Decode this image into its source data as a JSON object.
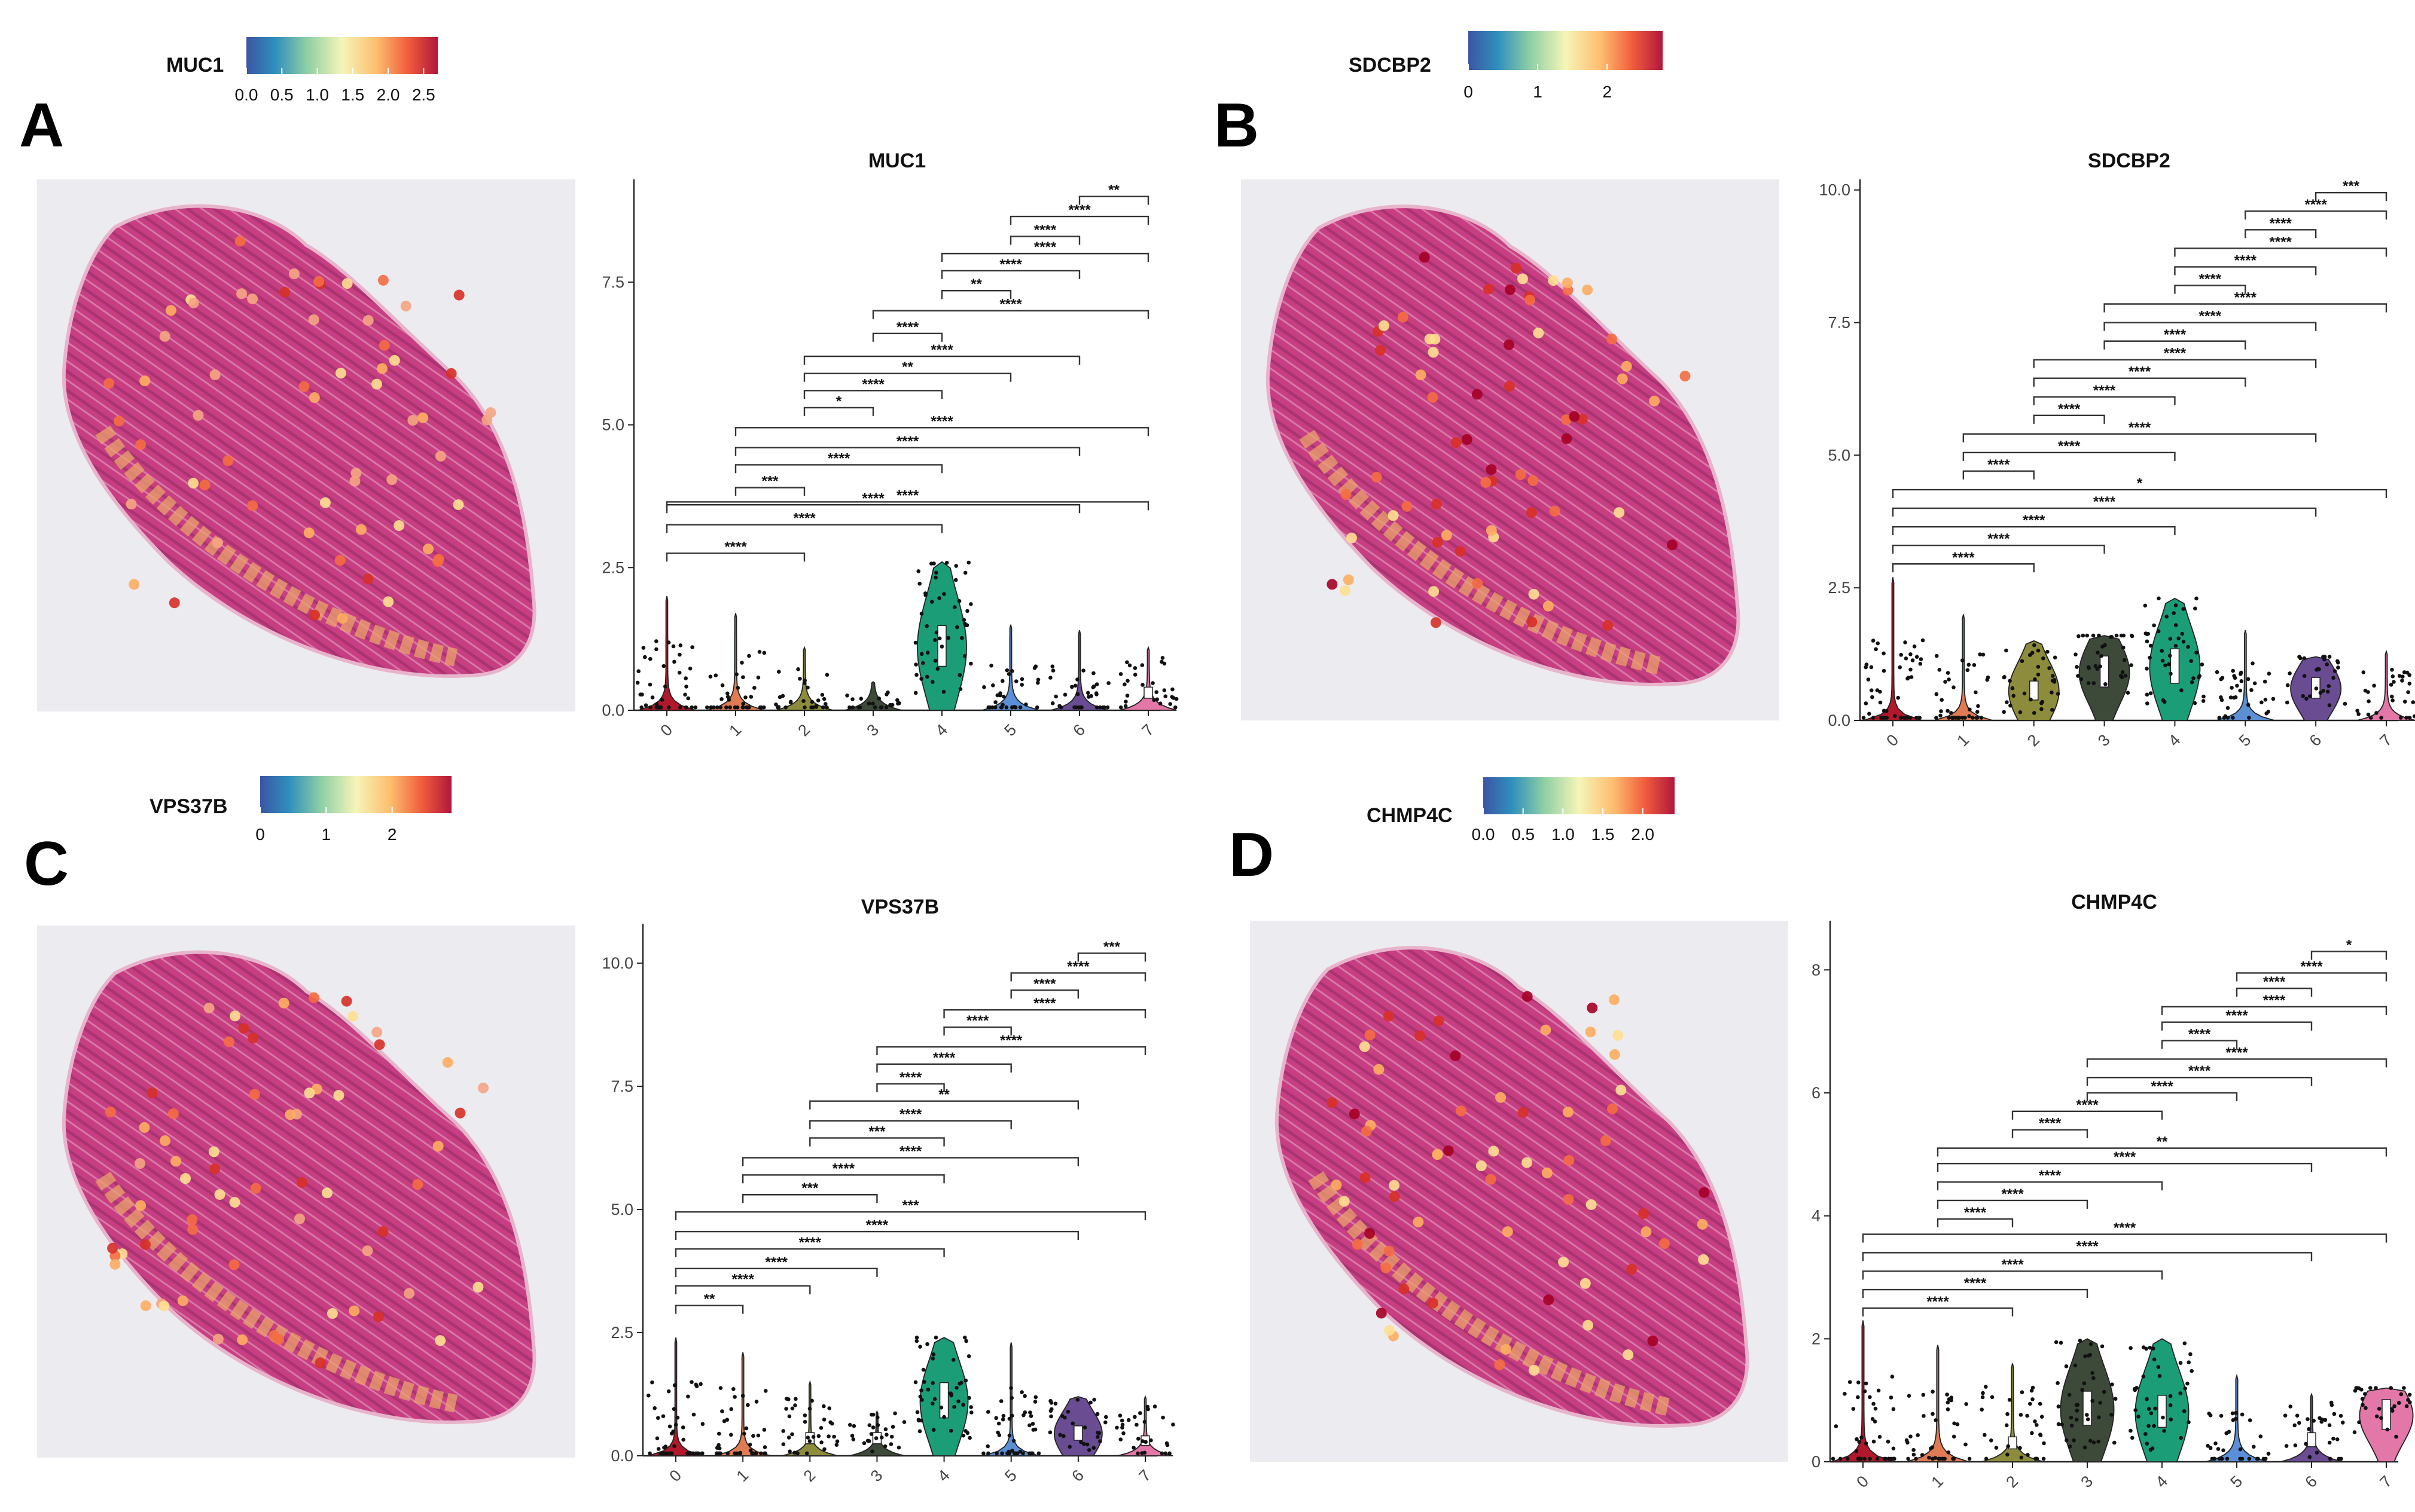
{
  "figure": {
    "panels": [
      {
        "letter": "A",
        "gene": "MUC1",
        "legend": {
          "title": "MUC1",
          "ticks": [
            "0.0",
            "0.5",
            "1.0",
            "1.5",
            "2.0",
            "2.5"
          ],
          "min": 0,
          "max": 2.7
        },
        "tissue_spot_colors": [
          "#f4a582",
          "#fdae61",
          "#f46d43",
          "#fee090",
          "#d73027"
        ]
      },
      {
        "letter": "B",
        "gene": "SDCBP2",
        "legend": {
          "title": "SDCBP2",
          "ticks": [
            "0",
            "1",
            "2"
          ],
          "min": 0,
          "max": 2.8
        },
        "tissue_spot_colors": [
          "#fdae61",
          "#f46d43",
          "#d73027",
          "#fee090",
          "#a50026"
        ]
      },
      {
        "letter": "C",
        "gene": "VPS37B",
        "legend": {
          "title": "VPS37B",
          "ticks": [
            "0",
            "1",
            "2"
          ],
          "min": 0,
          "max": 2.9
        },
        "tissue_spot_colors": [
          "#fdae61",
          "#f46d43",
          "#fee090",
          "#d73027",
          "#f4a582"
        ]
      },
      {
        "letter": "D",
        "gene": "CHMP4C",
        "legend": {
          "title": "CHMP4C",
          "ticks": [
            "0.0",
            "0.5",
            "1.0",
            "1.5",
            "2.0"
          ],
          "min": 0,
          "max": 2.4
        },
        "tissue_spot_colors": [
          "#fdae61",
          "#d73027",
          "#f46d43",
          "#fee090",
          "#a50026"
        ]
      }
    ],
    "colors": {
      "clusters": [
        "#b2182b",
        "#e07b54",
        "#8c8c3c",
        "#3d4a3a",
        "#1b9e77",
        "#5b8fd6",
        "#6a4c93",
        "#e377a8"
      ],
      "tissue": "#c2407f",
      "tissue_edge": "#e8b4cc",
      "spatial_bg": "#ececf0"
    }
  },
  "chart_data": [
    {
      "type": "violin",
      "title": "MUC1",
      "categories": [
        "0",
        "1",
        "2",
        "3",
        "4",
        "5",
        "6",
        "7"
      ],
      "ylim": [
        0,
        9.3
      ],
      "yticks": [
        "0.0",
        "2.5",
        "5.0",
        "7.5"
      ],
      "violin_max": [
        2.0,
        1.7,
        1.1,
        0.5,
        2.6,
        1.5,
        1.4,
        1.1
      ],
      "medians": [
        0.05,
        0.05,
        0.1,
        0.05,
        1.1,
        0.05,
        0.15,
        0.3
      ],
      "comparisons": [
        {
          "a": "0",
          "b": "2",
          "y": 2.75,
          "label": "****"
        },
        {
          "a": "0",
          "b": "4",
          "y": 3.25,
          "label": "****"
        },
        {
          "a": "0",
          "b": "6",
          "y": 3.6,
          "label": "****"
        },
        {
          "a": "0",
          "b": "7",
          "y": 3.65,
          "label": "****"
        },
        {
          "a": "1",
          "b": "2",
          "y": 3.9,
          "label": "***"
        },
        {
          "a": "1",
          "b": "4",
          "y": 4.3,
          "label": "****"
        },
        {
          "a": "1",
          "b": "6",
          "y": 4.6,
          "label": "****"
        },
        {
          "a": "1",
          "b": "7",
          "y": 4.95,
          "label": "****"
        },
        {
          "a": "2",
          "b": "3",
          "y": 5.3,
          "label": "*"
        },
        {
          "a": "2",
          "b": "4",
          "y": 5.6,
          "label": "****"
        },
        {
          "a": "2",
          "b": "5",
          "y": 5.9,
          "label": "**"
        },
        {
          "a": "2",
          "b": "6",
          "y": 6.2,
          "label": "****"
        },
        {
          "a": "3",
          "b": "4",
          "y": 6.6,
          "label": "****"
        },
        {
          "a": "3",
          "b": "7",
          "y": 7.0,
          "label": "****"
        },
        {
          "a": "4",
          "b": "5",
          "y": 7.35,
          "label": "**"
        },
        {
          "a": "4",
          "b": "6",
          "y": 7.7,
          "label": "****"
        },
        {
          "a": "4",
          "b": "7",
          "y": 8.0,
          "label": "****"
        },
        {
          "a": "5",
          "b": "6",
          "y": 8.3,
          "label": "****"
        },
        {
          "a": "5",
          "b": "7",
          "y": 8.65,
          "label": "****"
        },
        {
          "a": "6",
          "b": "7",
          "y": 9.0,
          "label": "**"
        }
      ]
    },
    {
      "type": "violin",
      "title": "SDCBP2",
      "categories": [
        "0",
        "1",
        "2",
        "3",
        "4",
        "5",
        "6",
        "7"
      ],
      "ylim": [
        0,
        10.2
      ],
      "yticks": [
        "0.0",
        "2.5",
        "5.0",
        "7.5",
        "10.0"
      ],
      "violin_max": [
        2.7,
        2.0,
        1.5,
        1.6,
        2.3,
        1.7,
        1.2,
        1.3
      ],
      "medians": [
        0.1,
        0.1,
        0.55,
        0.9,
        1.0,
        0.1,
        0.6,
        0.2
      ],
      "comparisons": [
        {
          "a": "0",
          "b": "2",
          "y": 2.95,
          "label": "****"
        },
        {
          "a": "0",
          "b": "3",
          "y": 3.3,
          "label": "****"
        },
        {
          "a": "0",
          "b": "4",
          "y": 3.65,
          "label": "****"
        },
        {
          "a": "0",
          "b": "6",
          "y": 4.0,
          "label": "****"
        },
        {
          "a": "0",
          "b": "7",
          "y": 4.35,
          "label": "*"
        },
        {
          "a": "1",
          "b": "2",
          "y": 4.7,
          "label": "****"
        },
        {
          "a": "1",
          "b": "4",
          "y": 5.05,
          "label": "****"
        },
        {
          "a": "1",
          "b": "6",
          "y": 5.4,
          "label": "****"
        },
        {
          "a": "2",
          "b": "3",
          "y": 5.75,
          "label": "****"
        },
        {
          "a": "2",
          "b": "4",
          "y": 6.1,
          "label": "****"
        },
        {
          "a": "2",
          "b": "5",
          "y": 6.45,
          "label": "****"
        },
        {
          "a": "2",
          "b": "6",
          "y": 6.8,
          "label": "****"
        },
        {
          "a": "3",
          "b": "5",
          "y": 7.15,
          "label": "****"
        },
        {
          "a": "3",
          "b": "6",
          "y": 7.5,
          "label": "****"
        },
        {
          "a": "3",
          "b": "7",
          "y": 7.85,
          "label": "****"
        },
        {
          "a": "4",
          "b": "5",
          "y": 8.2,
          "label": "****"
        },
        {
          "a": "4",
          "b": "6",
          "y": 8.55,
          "label": "****"
        },
        {
          "a": "4",
          "b": "7",
          "y": 8.9,
          "label": "****"
        },
        {
          "a": "5",
          "b": "6",
          "y": 9.25,
          "label": "****"
        },
        {
          "a": "5",
          "b": "7",
          "y": 9.6,
          "label": "****"
        },
        {
          "a": "6",
          "b": "7",
          "y": 9.95,
          "label": "***"
        }
      ]
    },
    {
      "type": "violin",
      "title": "VPS37B",
      "categories": [
        "0",
        "1",
        "2",
        "3",
        "4",
        "5",
        "6",
        "7"
      ],
      "ylim": [
        0,
        10.8
      ],
      "yticks": [
        "0.0",
        "2.5",
        "5.0",
        "7.5",
        "10.0"
      ],
      "violin_max": [
        2.4,
        2.1,
        1.5,
        0.9,
        2.4,
        2.3,
        1.2,
        1.2
      ],
      "medians": [
        0.1,
        0.15,
        0.35,
        0.35,
        1.1,
        0.15,
        0.45,
        0.3
      ],
      "comparisons": [
        {
          "a": "0",
          "b": "1",
          "y": 3.05,
          "label": "**"
        },
        {
          "a": "0",
          "b": "2",
          "y": 3.45,
          "label": "****"
        },
        {
          "a": "0",
          "b": "3",
          "y": 3.8,
          "label": "****"
        },
        {
          "a": "0",
          "b": "4",
          "y": 4.2,
          "label": "****"
        },
        {
          "a": "0",
          "b": "6",
          "y": 4.55,
          "label": "****"
        },
        {
          "a": "0",
          "b": "7",
          "y": 4.95,
          "label": "***"
        },
        {
          "a": "1",
          "b": "3",
          "y": 5.3,
          "label": "***"
        },
        {
          "a": "1",
          "b": "4",
          "y": 5.7,
          "label": "****"
        },
        {
          "a": "1",
          "b": "6",
          "y": 6.05,
          "label": "****"
        },
        {
          "a": "2",
          "b": "4",
          "y": 6.45,
          "label": "***"
        },
        {
          "a": "2",
          "b": "5",
          "y": 6.8,
          "label": "****"
        },
        {
          "a": "2",
          "b": "6",
          "y": 7.2,
          "label": "**"
        },
        {
          "a": "3",
          "b": "4",
          "y": 7.55,
          "label": "****"
        },
        {
          "a": "3",
          "b": "5",
          "y": 7.95,
          "label": "****"
        },
        {
          "a": "3",
          "b": "7",
          "y": 8.3,
          "label": "****"
        },
        {
          "a": "4",
          "b": "5",
          "y": 8.7,
          "label": "****"
        },
        {
          "a": "4",
          "b": "7",
          "y": 9.05,
          "label": "****"
        },
        {
          "a": "5",
          "b": "6",
          "y": 9.45,
          "label": "****"
        },
        {
          "a": "5",
          "b": "7",
          "y": 9.8,
          "label": "****"
        },
        {
          "a": "6",
          "b": "7",
          "y": 10.2,
          "label": "***"
        }
      ]
    },
    {
      "type": "violin",
      "title": "CHMP4C",
      "categories": [
        "0",
        "1",
        "2",
        "3",
        "4",
        "5",
        "6",
        "7"
      ],
      "ylim": [
        0,
        8.8
      ],
      "yticks": [
        "0",
        "2",
        "4",
        "6",
        "8"
      ],
      "violin_max": [
        2.3,
        1.9,
        1.6,
        2.0,
        2.0,
        1.4,
        1.1,
        1.2
      ],
      "medians": [
        0.05,
        0.05,
        0.3,
        0.85,
        0.8,
        0.05,
        0.35,
        0.75
      ],
      "comparisons": [
        {
          "a": "0",
          "b": "2",
          "y": 2.5,
          "label": "****"
        },
        {
          "a": "0",
          "b": "3",
          "y": 2.8,
          "label": "****"
        },
        {
          "a": "0",
          "b": "4",
          "y": 3.1,
          "label": "****"
        },
        {
          "a": "0",
          "b": "6",
          "y": 3.4,
          "label": "****"
        },
        {
          "a": "0",
          "b": "7",
          "y": 3.7,
          "label": "****"
        },
        {
          "a": "1",
          "b": "2",
          "y": 3.95,
          "label": "****"
        },
        {
          "a": "1",
          "b": "3",
          "y": 4.25,
          "label": "****"
        },
        {
          "a": "1",
          "b": "4",
          "y": 4.55,
          "label": "****"
        },
        {
          "a": "1",
          "b": "6",
          "y": 4.85,
          "label": "****"
        },
        {
          "a": "1",
          "b": "7",
          "y": 5.1,
          "label": "**"
        },
        {
          "a": "2",
          "b": "3",
          "y": 5.4,
          "label": "****"
        },
        {
          "a": "2",
          "b": "4",
          "y": 5.7,
          "label": "****"
        },
        {
          "a": "3",
          "b": "5",
          "y": 6.0,
          "label": "****"
        },
        {
          "a": "3",
          "b": "6",
          "y": 6.25,
          "label": "****"
        },
        {
          "a": "3",
          "b": "7",
          "y": 6.55,
          "label": "****"
        },
        {
          "a": "4",
          "b": "5",
          "y": 6.85,
          "label": "****"
        },
        {
          "a": "4",
          "b": "6",
          "y": 7.15,
          "label": "****"
        },
        {
          "a": "4",
          "b": "7",
          "y": 7.4,
          "label": "****"
        },
        {
          "a": "5",
          "b": "6",
          "y": 7.7,
          "label": "****"
        },
        {
          "a": "5",
          "b": "7",
          "y": 7.95,
          "label": "****"
        },
        {
          "a": "6",
          "b": "7",
          "y": 8.3,
          "label": "*"
        }
      ]
    }
  ]
}
